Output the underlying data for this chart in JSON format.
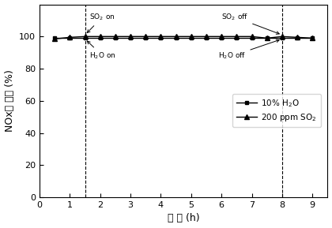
{
  "series1_x": [
    0.5,
    1.0,
    1.5,
    2.0,
    2.5,
    3.0,
    3.5,
    4.0,
    4.5,
    5.0,
    5.5,
    6.0,
    6.5,
    7.0,
    7.5,
    8.0,
    8.5,
    9.0
  ],
  "series1_y": [
    99,
    99,
    99,
    99,
    99,
    99,
    99,
    99,
    99,
    99,
    99,
    99,
    99,
    99,
    99,
    99,
    99,
    99
  ],
  "series2_x": [
    0.5,
    1.0,
    1.5,
    2.0,
    2.5,
    3.0,
    3.5,
    4.0,
    4.5,
    5.0,
    5.5,
    6.0,
    6.5,
    7.0,
    7.5,
    8.0,
    8.5,
    9.0
  ],
  "series2_y": [
    98.5,
    99.5,
    100,
    100,
    100,
    100,
    100,
    100,
    100,
    100,
    100,
    100,
    100,
    100,
    99,
    100,
    99.5,
    99
  ],
  "vline1_x": 1.5,
  "vline2_x": 8.0,
  "so2_on_label": "SO$_2$ on",
  "h2o_on_label": "H$_2$O on",
  "so2_off_label": "SO$_2$ off",
  "h2o_off_label": "H$_2$O off",
  "legend1": "10% H$_2$O",
  "legend2": "200 ppm SO$_2$",
  "xlabel": "时 间 (h)",
  "ylabel": "NOx转 化率 (%)",
  "xlim": [
    0,
    9.5
  ],
  "ylim": [
    0,
    120
  ],
  "yticks": [
    0,
    20,
    40,
    60,
    80,
    100
  ],
  "xticks": [
    0,
    1,
    2,
    3,
    4,
    5,
    6,
    7,
    8,
    9
  ],
  "line_color": "black",
  "marker1": "s",
  "marker2": "^",
  "bg_color": "#ffffff"
}
